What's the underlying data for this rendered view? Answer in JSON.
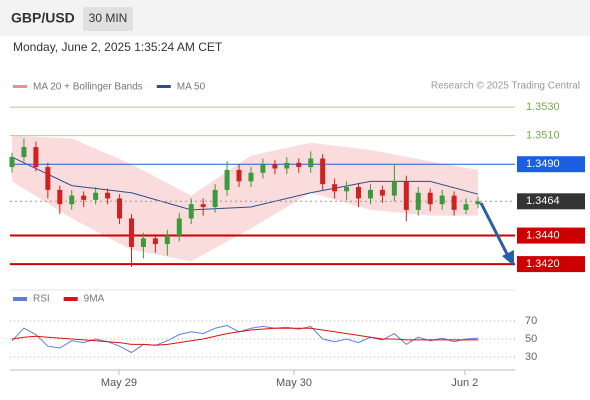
{
  "header": {
    "symbol": "GBP/USD",
    "timeframe": "30 MIN",
    "datetime": "Monday, June 2, 2025 1:35:24 AM CET"
  },
  "chart_data": [
    {
      "type": "candlestick",
      "legend": [
        {
          "name": "MA 20 + Bollinger Bands",
          "color": "#f08c8c"
        },
        {
          "name": "MA 50",
          "color": "#2c4f8c"
        }
      ],
      "credit": "Research © 2025 Trading Central",
      "up_color": "#3c9a3c",
      "down_color": "#d02020",
      "ohlc": [
        [
          1.3488,
          1.3498,
          1.3484,
          1.3495
        ],
        [
          1.3495,
          1.3508,
          1.3492,
          1.3502
        ],
        [
          1.3502,
          1.3506,
          1.3485,
          1.3488
        ],
        [
          1.3488,
          1.3491,
          1.3466,
          1.3472
        ],
        [
          1.3472,
          1.3475,
          1.3455,
          1.3462
        ],
        [
          1.3462,
          1.3472,
          1.3458,
          1.3468
        ],
        [
          1.3468,
          1.3471,
          1.346,
          1.3465
        ],
        [
          1.3465,
          1.3474,
          1.3462,
          1.347
        ],
        [
          1.347,
          1.3473,
          1.3462,
          1.3466
        ],
        [
          1.3466,
          1.3469,
          1.3448,
          1.3452
        ],
        [
          1.3452,
          1.3455,
          1.3418,
          1.3432
        ],
        [
          1.3432,
          1.3442,
          1.3424,
          1.3438
        ],
        [
          1.3438,
          1.3441,
          1.3428,
          1.3434
        ],
        [
          1.3434,
          1.3444,
          1.3426,
          1.344
        ],
        [
          1.344,
          1.3456,
          1.3436,
          1.3452
        ],
        [
          1.3452,
          1.3466,
          1.3448,
          1.3462
        ],
        [
          1.3462,
          1.3466,
          1.3454,
          1.346
        ],
        [
          1.346,
          1.3476,
          1.3456,
          1.3472
        ],
        [
          1.3472,
          1.3492,
          1.3468,
          1.3486
        ],
        [
          1.3486,
          1.349,
          1.3474,
          1.3478
        ],
        [
          1.3478,
          1.3488,
          1.3474,
          1.3484
        ],
        [
          1.3484,
          1.3494,
          1.348,
          1.349
        ],
        [
          1.349,
          1.3493,
          1.3483,
          1.3487
        ],
        [
          1.3487,
          1.3495,
          1.3483,
          1.3491
        ],
        [
          1.3491,
          1.3494,
          1.3484,
          1.3488
        ],
        [
          1.3488,
          1.3499,
          1.3484,
          1.3494
        ],
        [
          1.3494,
          1.3497,
          1.3472,
          1.3476
        ],
        [
          1.3476,
          1.348,
          1.3466,
          1.3471
        ],
        [
          1.3471,
          1.3478,
          1.3465,
          1.3474
        ],
        [
          1.3474,
          1.3477,
          1.346,
          1.3466
        ],
        [
          1.3466,
          1.3476,
          1.3462,
          1.3472
        ],
        [
          1.3472,
          1.3475,
          1.3463,
          1.3468
        ],
        [
          1.3468,
          1.349,
          1.3464,
          1.3478
        ],
        [
          1.3478,
          1.3482,
          1.345,
          1.3458
        ],
        [
          1.3458,
          1.3474,
          1.3454,
          1.347
        ],
        [
          1.347,
          1.3473,
          1.3457,
          1.3462
        ],
        [
          1.3462,
          1.3472,
          1.3458,
          1.3468
        ],
        [
          1.3468,
          1.3471,
          1.3454,
          1.3458
        ],
        [
          1.3458,
          1.3466,
          1.3455,
          1.3462
        ],
        [
          1.3462,
          1.3467,
          1.3459,
          1.3464
        ]
      ],
      "bands": {
        "x": [
          0,
          5,
          10,
          15,
          20,
          25,
          30,
          35,
          39
        ],
        "upper": [
          1.351,
          1.3508,
          1.349,
          1.3468,
          1.3496,
          1.3505,
          1.35,
          1.3492,
          1.3486
        ],
        "lower": [
          1.3478,
          1.3452,
          1.343,
          1.3422,
          1.3445,
          1.347,
          1.3458,
          1.3454,
          1.3454
        ],
        "ma50": [
          1.3495,
          1.3475,
          1.347,
          1.3458,
          1.346,
          1.347,
          1.3478,
          1.3478,
          1.3469
        ]
      },
      "levels": [
        {
          "value": 1.353,
          "label": "1.3530",
          "color": "#a8d080",
          "style": "thin"
        },
        {
          "value": 1.351,
          "label": "1.3510",
          "color": "#a8d080",
          "style": "thin"
        },
        {
          "value": 1.349,
          "label": "1.3490",
          "color": "#1a5fe0",
          "style": "box"
        },
        {
          "value": 1.3464,
          "label": "1.3464",
          "color": "#333333",
          "style": "current"
        },
        {
          "value": 1.344,
          "label": "1.3440",
          "color": "#cc0000",
          "style": "thick"
        },
        {
          "value": 1.342,
          "label": "1.3420",
          "color": "#cc0000",
          "style": "thick"
        }
      ],
      "xlim": [
        0,
        39
      ],
      "ylim": [
        1.3405,
        1.3535
      ],
      "xticks": [
        {
          "value": 8.95,
          "label": "May 29"
        },
        {
          "value": 23.6,
          "label": "May 30"
        },
        {
          "value": 37.9,
          "label": "Jun 2"
        }
      ]
    },
    {
      "type": "line",
      "series": [
        {
          "name": "RSI",
          "color": "#5b7fdc",
          "values": [
            48,
            62,
            55,
            42,
            40,
            48,
            46,
            50,
            47,
            42,
            35,
            44,
            43,
            48,
            55,
            58,
            56,
            62,
            65,
            58,
            62,
            64,
            62,
            63,
            61,
            64,
            50,
            47,
            50,
            46,
            52,
            49,
            56,
            44,
            52,
            48,
            51,
            47,
            50,
            51
          ]
        },
        {
          "name": "9MA",
          "color": "#dd1111",
          "values": [
            50,
            52,
            53,
            52,
            51,
            50,
            49,
            48,
            47,
            46,
            44,
            44,
            43,
            44,
            46,
            48,
            50,
            53,
            56,
            58,
            60,
            61,
            62,
            62,
            62,
            62,
            60,
            58,
            56,
            54,
            52,
            50,
            50,
            49,
            49,
            49,
            49,
            49,
            49,
            49
          ]
        }
      ],
      "xlim": [
        0,
        39
      ],
      "ylim": [
        20,
        80
      ],
      "yticks": [
        70,
        50,
        30
      ]
    }
  ]
}
